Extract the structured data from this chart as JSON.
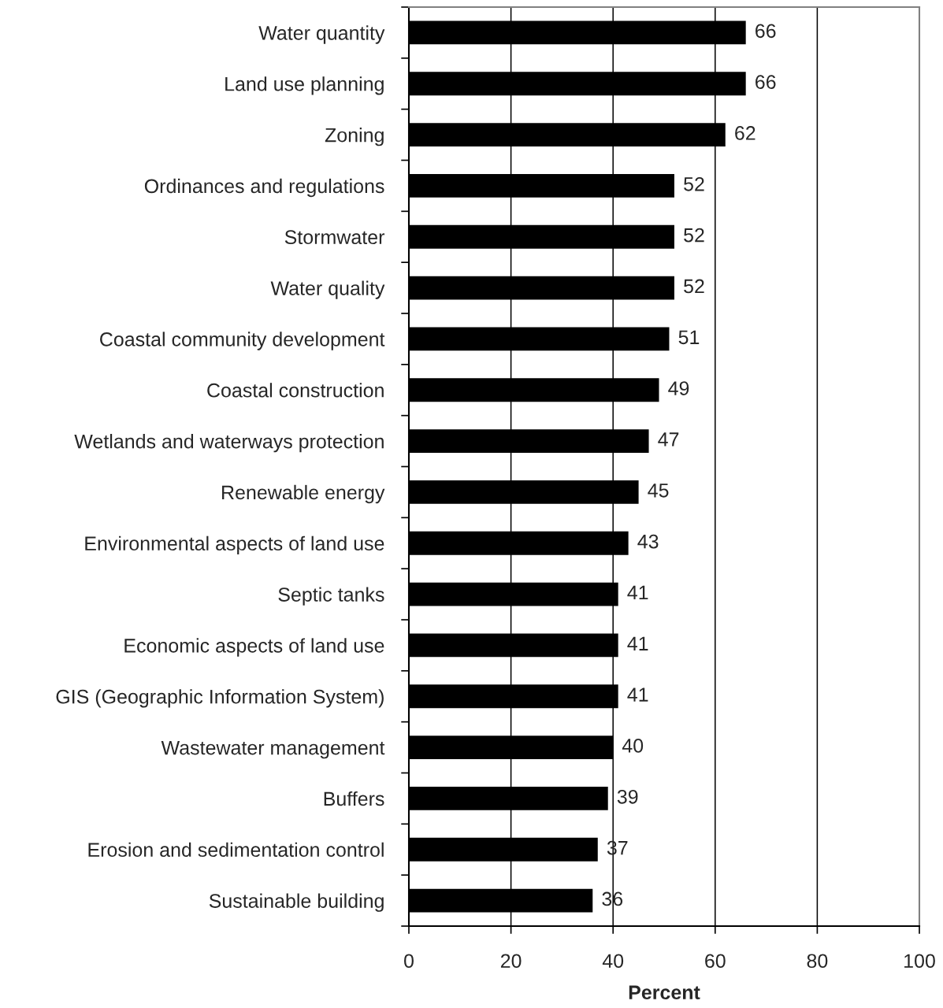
{
  "chart_data": {
    "type": "bar",
    "orientation": "horizontal",
    "categories": [
      "Water quantity",
      "Land use planning",
      "Zoning",
      "Ordinances and regulations",
      "Stormwater",
      "Water quality",
      "Coastal community development",
      "Coastal construction",
      "Wetlands and waterways protection",
      "Renewable energy",
      "Environmental aspects of land use",
      "Septic tanks",
      "Economic aspects of land use",
      "GIS (Geographic Information System)",
      "Wastewater management",
      "Buffers",
      "Erosion and sedimentation control",
      "Sustainable building"
    ],
    "values": [
      66,
      66,
      62,
      52,
      52,
      52,
      51,
      49,
      47,
      45,
      43,
      41,
      41,
      41,
      40,
      39,
      37,
      36
    ],
    "color": "#000000",
    "xlabel": "Percent",
    "xlim": [
      0,
      100
    ],
    "xticks": [
      0,
      20,
      40,
      60,
      80,
      100
    ],
    "grid": "x",
    "data_labels": true
  }
}
